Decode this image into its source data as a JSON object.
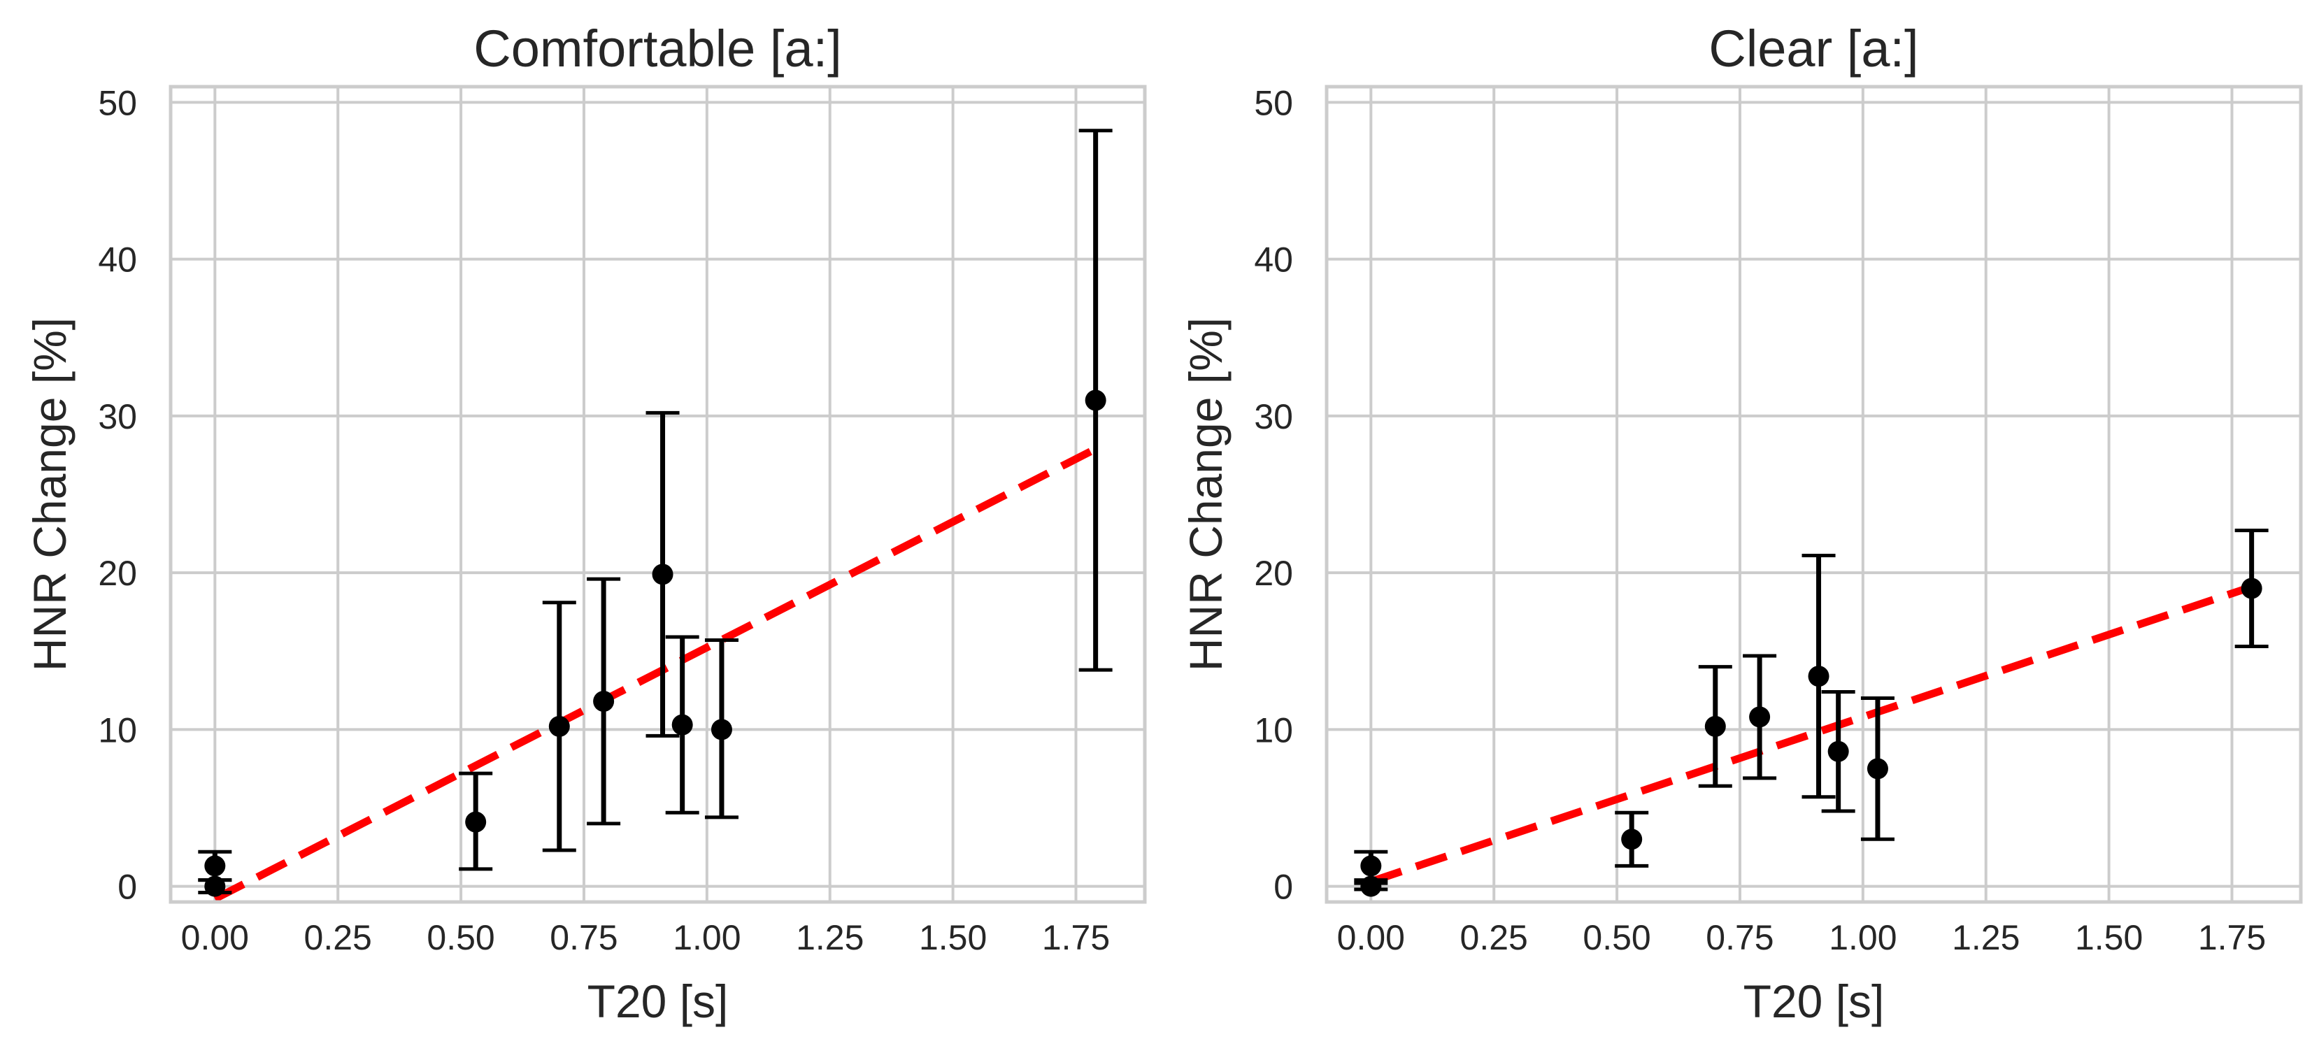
{
  "chart_data": [
    {
      "type": "scatter",
      "title": "Comfortable [a:]",
      "xlabel": "T20 [s]",
      "ylabel": "HNR Change [%]",
      "xlim": [
        -0.09,
        1.89
      ],
      "ylim": [
        -1,
        51
      ],
      "xticks": [
        0,
        0.25,
        0.5,
        0.75,
        1.0,
        1.25,
        1.5,
        1.75
      ],
      "xtick_labels": [
        "0.00",
        "0.25",
        "0.50",
        "0.75",
        "1.00",
        "1.25",
        "1.50",
        "1.75"
      ],
      "yticks": [
        0,
        10,
        20,
        30,
        40,
        50
      ],
      "ytick_labels": [
        "0",
        "10",
        "20",
        "30",
        "40",
        "50"
      ],
      "grid": true,
      "colors": {
        "points": "#000000",
        "errorbars": "#000000",
        "fit": "#ff0000"
      },
      "points": [
        {
          "x": 0.0,
          "y": 1.3,
          "ylow": 0.4,
          "yhigh": 2.2
        },
        {
          "x": 0.0,
          "y": 0.0,
          "ylow": -0.4,
          "yhigh": 0.4
        },
        {
          "x": 0.53,
          "y": 4.1,
          "ylow": 1.1,
          "yhigh": 7.2
        },
        {
          "x": 0.7,
          "y": 10.2,
          "ylow": 2.3,
          "yhigh": 18.1
        },
        {
          "x": 0.79,
          "y": 11.8,
          "ylow": 4.0,
          "yhigh": 19.6
        },
        {
          "x": 0.91,
          "y": 19.9,
          "ylow": 9.6,
          "yhigh": 30.2
        },
        {
          "x": 0.95,
          "y": 10.3,
          "ylow": 4.7,
          "yhigh": 15.9
        },
        {
          "x": 1.03,
          "y": 10.0,
          "ylow": 4.4,
          "yhigh": 15.7
        },
        {
          "x": 1.79,
          "y": 31.0,
          "ylow": 13.8,
          "yhigh": 48.2
        }
      ],
      "fit_line": {
        "x": [
          0.0,
          1.79
        ],
        "y": [
          -0.8,
          27.9
        ]
      }
    },
    {
      "type": "scatter",
      "title": "Clear [a:]",
      "xlabel": "T20 [s]",
      "ylabel": "HNR Change [%]",
      "xlim": [
        -0.09,
        1.89
      ],
      "ylim": [
        -1,
        51
      ],
      "xticks": [
        0,
        0.25,
        0.5,
        0.75,
        1.0,
        1.25,
        1.5,
        1.75
      ],
      "xtick_labels": [
        "0.00",
        "0.25",
        "0.50",
        "0.75",
        "1.00",
        "1.25",
        "1.50",
        "1.75"
      ],
      "yticks": [
        0,
        10,
        20,
        30,
        40,
        50
      ],
      "ytick_labels": [
        "0",
        "10",
        "20",
        "30",
        "40",
        "50"
      ],
      "grid": true,
      "colors": {
        "points": "#000000",
        "errorbars": "#000000",
        "fit": "#ff0000"
      },
      "points": [
        {
          "x": 0.0,
          "y": 1.3,
          "ylow": 0.4,
          "yhigh": 2.2
        },
        {
          "x": 0.0,
          "y": 0.0,
          "ylow": -0.2,
          "yhigh": 0.2
        },
        {
          "x": 0.53,
          "y": 3.0,
          "ylow": 1.3,
          "yhigh": 4.7
        },
        {
          "x": 0.7,
          "y": 10.2,
          "ylow": 6.4,
          "yhigh": 14.0
        },
        {
          "x": 0.79,
          "y": 10.8,
          "ylow": 6.9,
          "yhigh": 14.7
        },
        {
          "x": 0.91,
          "y": 13.4,
          "ylow": 5.7,
          "yhigh": 21.1
        },
        {
          "x": 0.95,
          "y": 8.6,
          "ylow": 4.8,
          "yhigh": 12.4
        },
        {
          "x": 1.03,
          "y": 7.5,
          "ylow": 3.0,
          "yhigh": 12.0
        },
        {
          "x": 1.79,
          "y": 19.0,
          "ylow": 15.3,
          "yhigh": 22.7
        }
      ],
      "fit_line": {
        "x": [
          0.0,
          1.79
        ],
        "y": [
          0.3,
          19.1
        ]
      }
    }
  ]
}
